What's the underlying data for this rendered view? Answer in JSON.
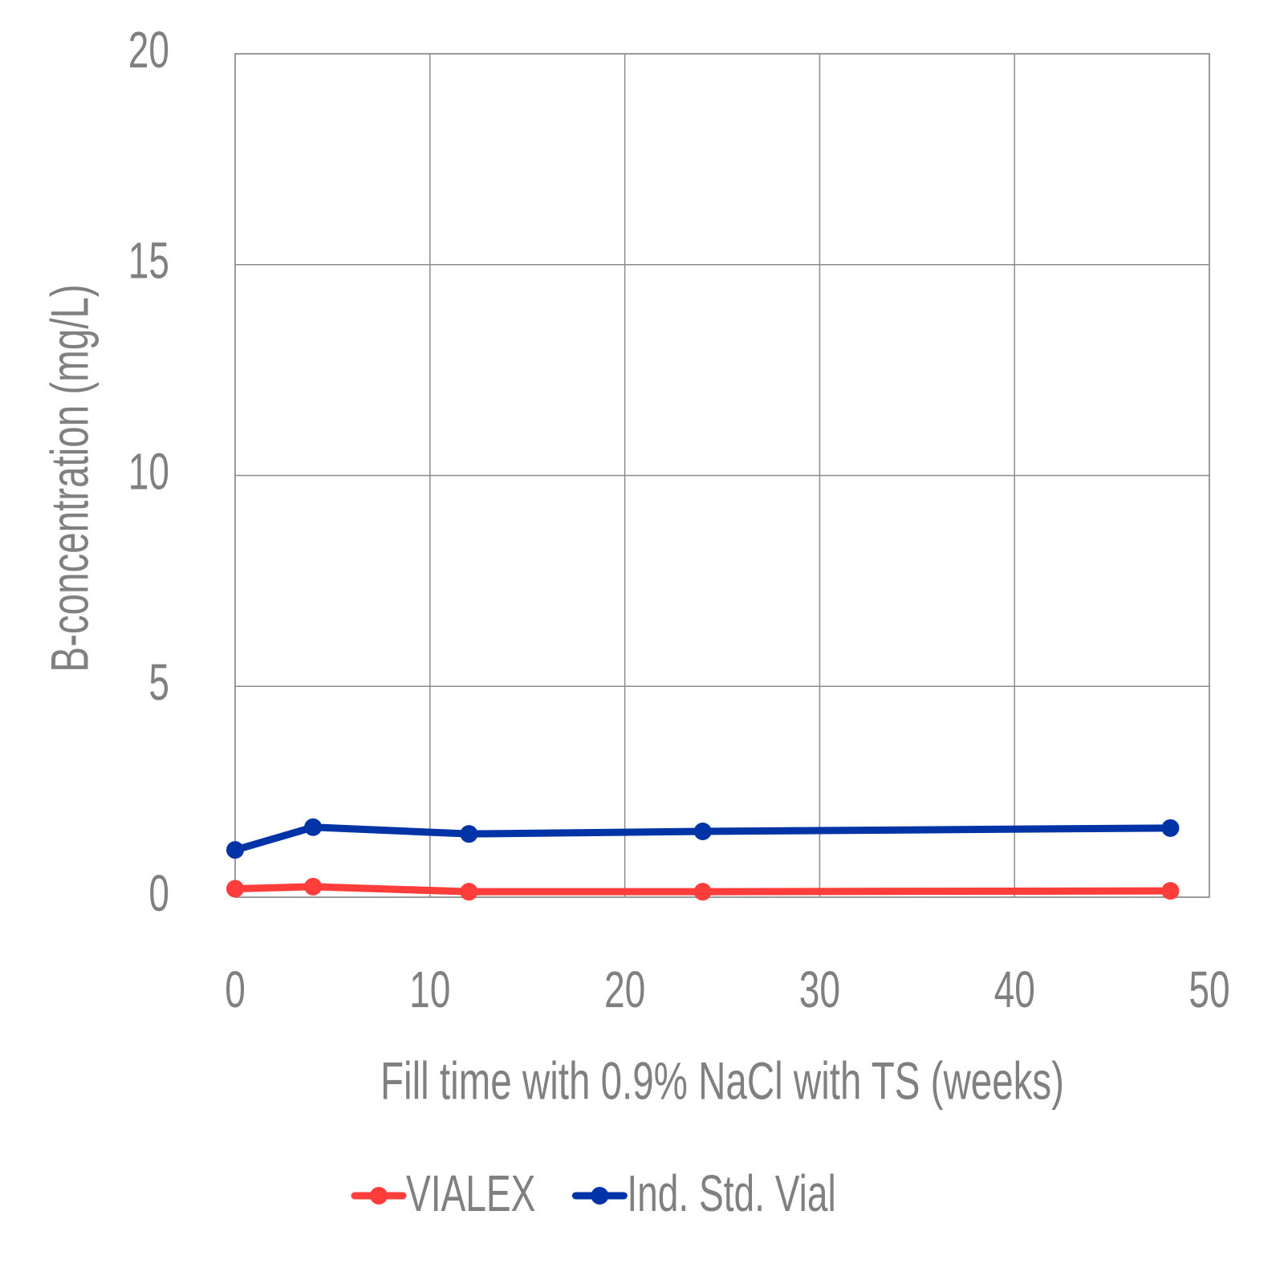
{
  "chart_data": {
    "type": "line",
    "x_label": "Fill time with 0.9% NaCl with TS (weeks)",
    "y_label": "B-concentration (mg/L)",
    "x": [
      0,
      4,
      12,
      24,
      48
    ],
    "series": [
      {
        "name": "VIALEX",
        "color": "#ff3d3a",
        "values": [
          0.2,
          0.25,
          0.13,
          0.13,
          0.15
        ]
      },
      {
        "name": "Ind. Std. Vial",
        "color": "#0033a6",
        "values": [
          1.12,
          1.66,
          1.5,
          1.56,
          1.64
        ]
      }
    ],
    "xlim": [
      0,
      50
    ],
    "xticks": [
      0,
      10,
      20,
      30,
      40,
      50
    ],
    "ylim": [
      0,
      20
    ],
    "yticks": [
      0,
      5,
      10,
      15,
      20
    ],
    "grid": true,
    "legend": "bottom"
  }
}
